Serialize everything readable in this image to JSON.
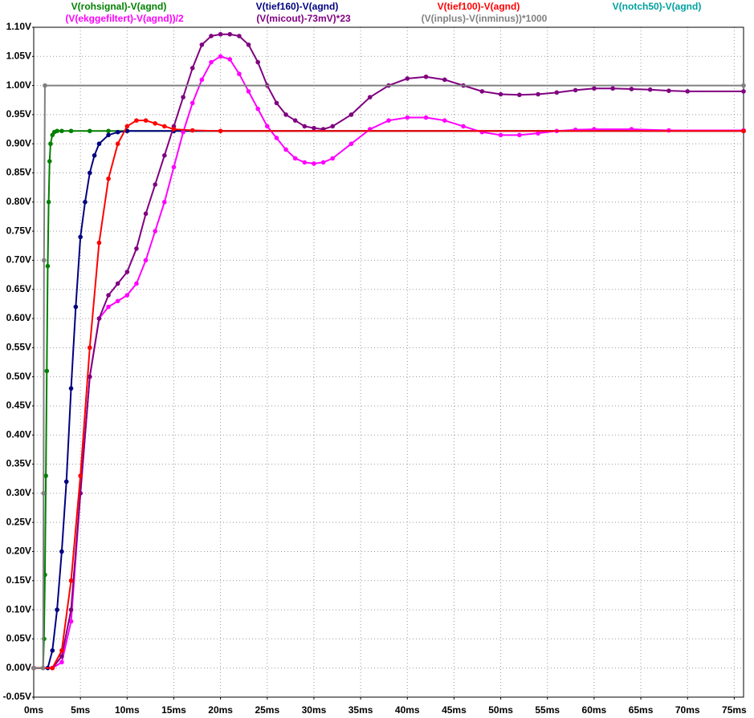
{
  "chart_data": {
    "type": "line",
    "xlim": [
      0,
      76
    ],
    "ylim": [
      -0.05,
      1.1
    ],
    "grid": true,
    "xticks": [
      {
        "value": 0,
        "label": "0ms"
      },
      {
        "value": 5,
        "label": "5ms"
      },
      {
        "value": 10,
        "label": "10ms"
      },
      {
        "value": 15,
        "label": "15ms"
      },
      {
        "value": 20,
        "label": "20ms"
      },
      {
        "value": 25,
        "label": "25ms"
      },
      {
        "value": 30,
        "label": "30ms"
      },
      {
        "value": 35,
        "label": "35ms"
      },
      {
        "value": 40,
        "label": "40ms"
      },
      {
        "value": 45,
        "label": "45ms"
      },
      {
        "value": 50,
        "label": "50ms"
      },
      {
        "value": 55,
        "label": "55ms"
      },
      {
        "value": 60,
        "label": "60ms"
      },
      {
        "value": 65,
        "label": "65ms"
      },
      {
        "value": 70,
        "label": "70ms"
      },
      {
        "value": 75,
        "label": "75ms"
      }
    ],
    "yticks": [
      {
        "value": -0.05,
        "label": "-0.05V"
      },
      {
        "value": 0,
        "label": "0.00V"
      },
      {
        "value": 0.05,
        "label": "0.05V"
      },
      {
        "value": 0.1,
        "label": "0.10V"
      },
      {
        "value": 0.15,
        "label": "0.15V"
      },
      {
        "value": 0.2,
        "label": "0.20V"
      },
      {
        "value": 0.25,
        "label": "0.25V"
      },
      {
        "value": 0.3,
        "label": "0.30V"
      },
      {
        "value": 0.35,
        "label": "0.35V"
      },
      {
        "value": 0.4,
        "label": "0.40V"
      },
      {
        "value": 0.45,
        "label": "0.45V"
      },
      {
        "value": 0.5,
        "label": "0.50V"
      },
      {
        "value": 0.55,
        "label": "0.55V"
      },
      {
        "value": 0.6,
        "label": "0.60V"
      },
      {
        "value": 0.65,
        "label": "0.65V"
      },
      {
        "value": 0.7,
        "label": "0.70V"
      },
      {
        "value": 0.75,
        "label": "0.75V"
      },
      {
        "value": 0.8,
        "label": "0.80V"
      },
      {
        "value": 0.85,
        "label": "0.85V"
      },
      {
        "value": 0.9,
        "label": "0.90V"
      },
      {
        "value": 0.95,
        "label": "0.95V"
      },
      {
        "value": 1.0,
        "label": "1.00V"
      },
      {
        "value": 1.05,
        "label": "1.05V"
      },
      {
        "value": 1.1,
        "label": "1.10V"
      }
    ],
    "series": [
      {
        "name": "V(rohsignal)-V(agnd)",
        "color": "#008000",
        "x": [
          0,
          1,
          1.1,
          1.2,
          1.3,
          1.4,
          1.5,
          1.6,
          1.7,
          1.8,
          2,
          2.2,
          2.5,
          3,
          4,
          6,
          8,
          10,
          76
        ],
        "values": [
          0,
          0,
          0.05,
          0.16,
          0.33,
          0.51,
          0.69,
          0.8,
          0.87,
          0.9,
          0.915,
          0.92,
          0.922,
          0.922,
          0.922,
          0.922,
          0.922,
          0.922,
          0.922
        ]
      },
      {
        "name": "V(tief160)-V(agnd)",
        "color": "#000080",
        "x": [
          0,
          1.5,
          2,
          2.5,
          3,
          3.5,
          4,
          4.5,
          5,
          5.5,
          6,
          6.5,
          7,
          8,
          9,
          10,
          15,
          76
        ],
        "values": [
          0,
          0,
          0.03,
          0.1,
          0.2,
          0.32,
          0.48,
          0.62,
          0.74,
          0.8,
          0.85,
          0.88,
          0.9,
          0.915,
          0.92,
          0.922,
          0.922,
          0.922
        ]
      },
      {
        "name": "V(tief100)-V(agnd)",
        "color": "#ff0000",
        "x": [
          0,
          2,
          3,
          4,
          5,
          6,
          7,
          8,
          9,
          10,
          11,
          12,
          13,
          14,
          15,
          17,
          20,
          76
        ],
        "values": [
          0,
          0,
          0.03,
          0.15,
          0.33,
          0.55,
          0.73,
          0.84,
          0.9,
          0.93,
          0.94,
          0.94,
          0.935,
          0.93,
          0.925,
          0.923,
          0.922,
          0.922
        ]
      },
      {
        "name": "V(notch50)-V(agnd)",
        "color": "#00a0a0",
        "x": [],
        "values": []
      },
      {
        "name": "(V(ekggefiltert)-V(agnd))/2",
        "color": "#ff00ff",
        "x": [
          0,
          2,
          3,
          4,
          5,
          6,
          7,
          8,
          9,
          10,
          11,
          12,
          13,
          14,
          15,
          16,
          17,
          18,
          19,
          20,
          21,
          22,
          23,
          24,
          25,
          26,
          27,
          28,
          29,
          30,
          31,
          32,
          34,
          36,
          38,
          40,
          42,
          44,
          46,
          48,
          50,
          52,
          54,
          56,
          58,
          60,
          64,
          68,
          76
        ],
        "values": [
          0,
          0,
          0.01,
          0.08,
          0.3,
          0.5,
          0.6,
          0.62,
          0.63,
          0.64,
          0.66,
          0.7,
          0.75,
          0.8,
          0.86,
          0.92,
          0.97,
          1.01,
          1.04,
          1.05,
          1.045,
          1.02,
          0.99,
          0.96,
          0.93,
          0.91,
          0.89,
          0.875,
          0.868,
          0.866,
          0.868,
          0.875,
          0.9,
          0.925,
          0.94,
          0.945,
          0.945,
          0.94,
          0.93,
          0.92,
          0.915,
          0.915,
          0.918,
          0.922,
          0.924,
          0.925,
          0.925,
          0.923,
          0.923
        ]
      },
      {
        "name": "(V(micout)-73mV)*23",
        "color": "#800080",
        "x": [
          0,
          2,
          3,
          4,
          5,
          6,
          7,
          8,
          9,
          10,
          11,
          12,
          13,
          14,
          15,
          16,
          17,
          18,
          19,
          20,
          21,
          22,
          23,
          24,
          25,
          26,
          27,
          28,
          29,
          30,
          31,
          32,
          34,
          36,
          38,
          40,
          42,
          44,
          46,
          48,
          50,
          52,
          54,
          56,
          58,
          60,
          62,
          64,
          66,
          68,
          70,
          76
        ],
        "values": [
          0,
          0,
          0.02,
          0.1,
          0.3,
          0.5,
          0.6,
          0.64,
          0.66,
          0.68,
          0.72,
          0.78,
          0.83,
          0.88,
          0.93,
          0.98,
          1.03,
          1.07,
          1.085,
          1.088,
          1.088,
          1.085,
          1.07,
          1.04,
          1.0,
          0.97,
          0.95,
          0.94,
          0.93,
          0.927,
          0.925,
          0.93,
          0.95,
          0.98,
          1.0,
          1.012,
          1.015,
          1.01,
          1.0,
          0.99,
          0.985,
          0.984,
          0.985,
          0.988,
          0.992,
          0.995,
          0.995,
          0.994,
          0.993,
          0.991,
          0.99,
          0.99
        ]
      },
      {
        "name": "(V(inplus)-V(inminus))*1000",
        "color": "#808080",
        "x": [
          0,
          1,
          1.05,
          1.1,
          1.2,
          76
        ],
        "values": [
          0,
          0,
          0.3,
          0.7,
          1.0,
          1.0
        ]
      }
    ]
  }
}
